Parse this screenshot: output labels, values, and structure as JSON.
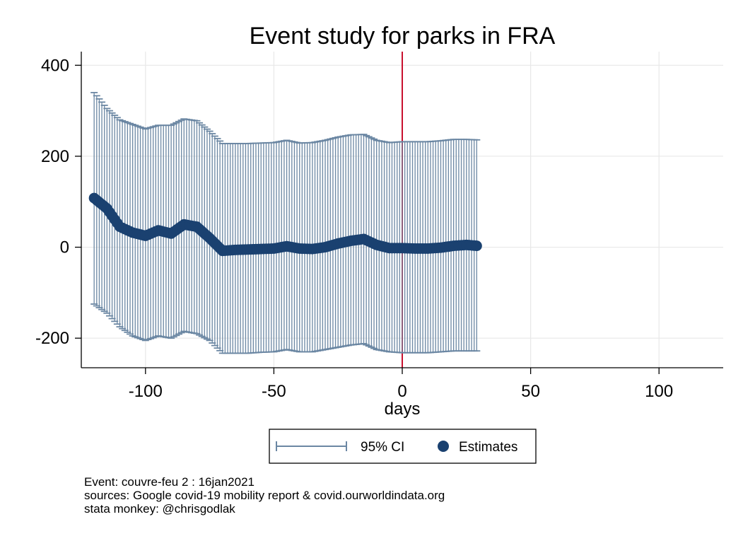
{
  "chart_data": {
    "type": "scatter",
    "title": "Event study for parks in FRA",
    "xlabel": "days",
    "ylabel": "",
    "xlim": [
      -125,
      125
    ],
    "ylim": [
      -265,
      430
    ],
    "xticks": [
      -100,
      -50,
      0,
      50,
      100
    ],
    "xtick_labels": [
      "-100",
      "-50",
      "0",
      "50",
      "100"
    ],
    "yticks": [
      -200,
      0,
      200,
      400
    ],
    "ytick_labels": [
      "-200",
      "0",
      "200",
      "400"
    ],
    "grid": true,
    "event_line_x": 0,
    "legend": {
      "placement": "bottom",
      "entries": [
        "95% CI",
        "Estimates"
      ]
    },
    "series": [
      {
        "name": "Estimates",
        "x": [
          -120,
          -115,
          -110,
          -105,
          -100,
          -95,
          -90,
          -85,
          -80,
          -75,
          -70,
          -65,
          -60,
          -55,
          -50,
          -45,
          -40,
          -35,
          -30,
          -25,
          -20,
          -15,
          -10,
          -5,
          0,
          5,
          10,
          15,
          20,
          25,
          29
        ],
        "y": [
          108,
          85,
          45,
          32,
          25,
          37,
          30,
          50,
          45,
          20,
          -8,
          -6,
          -5,
          -4,
          -3,
          2,
          -3,
          -4,
          0,
          8,
          14,
          18,
          5,
          -2,
          -2,
          -3,
          -3,
          -1,
          3,
          5,
          3
        ]
      },
      {
        "name": "95% CI",
        "x": [
          -120,
          -115,
          -110,
          -105,
          -100,
          -95,
          -90,
          -85,
          -80,
          -75,
          -70,
          -65,
          -60,
          -55,
          -50,
          -45,
          -40,
          -35,
          -30,
          -25,
          -20,
          -15,
          -10,
          -5,
          0,
          5,
          10,
          15,
          20,
          25,
          29
        ],
        "upper": [
          340,
          305,
          280,
          270,
          260,
          268,
          268,
          282,
          278,
          255,
          228,
          228,
          228,
          229,
          230,
          235,
          229,
          230,
          235,
          242,
          247,
          248,
          235,
          230,
          232,
          232,
          232,
          234,
          237,
          237,
          236
        ],
        "lower": [
          -125,
          -145,
          -175,
          -195,
          -205,
          -195,
          -200,
          -185,
          -190,
          -205,
          -233,
          -233,
          -233,
          -231,
          -230,
          -225,
          -230,
          -230,
          -225,
          -220,
          -215,
          -212,
          -225,
          -230,
          -232,
          -232,
          -232,
          -230,
          -228,
          -228,
          -228
        ]
      }
    ],
    "colors": {
      "estimates": "#1a4170",
      "ci": "#6b87a3",
      "event_line": "#c8102e",
      "grid": "#e8e8e8"
    }
  },
  "notes": {
    "event": "Event: couvre-feu 2 : 16jan2021",
    "sources": "sources: Google covid-19 mobility report & covid.ourworldindata.org",
    "credit": "stata monkey: @chrisgodlak"
  }
}
